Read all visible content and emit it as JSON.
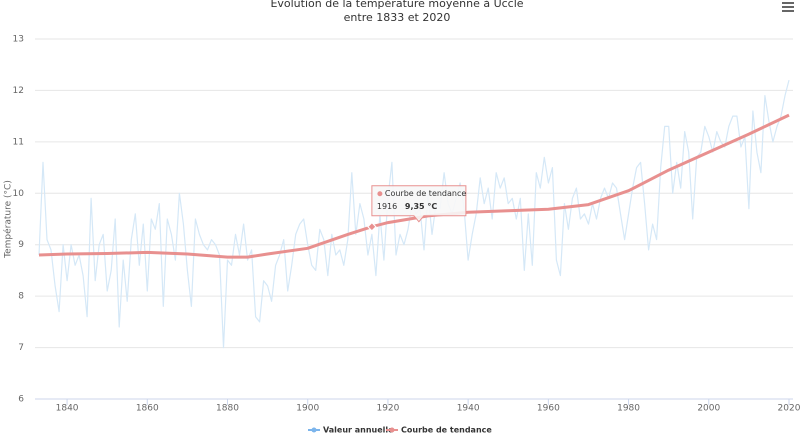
{
  "chart_data": {
    "type": "line",
    "title": "Évolution de la température moyenne à Uccle",
    "subtitle": "entre 1833 et 2020",
    "y_label": "Température (°C)",
    "xlim": [
      1832,
      2021
    ],
    "xticks": [
      1840,
      1860,
      1880,
      1900,
      1920,
      1940,
      1960,
      1980,
      2000,
      2020
    ],
    "ylim": [
      6,
      13
    ],
    "yticks": [
      6,
      7,
      8,
      9,
      10,
      11,
      12,
      13
    ],
    "grid": true,
    "series": [
      {
        "name": "Valeur annuelle",
        "color": "#d5e8f7",
        "marker_color": "#7cb5ec",
        "x_start": 1833,
        "values": [
          8.8,
          10.6,
          9.1,
          8.9,
          8.2,
          7.7,
          9.0,
          8.3,
          9.0,
          8.6,
          8.8,
          8.4,
          7.6,
          9.9,
          8.3,
          9.0,
          9.2,
          8.1,
          8.5,
          9.5,
          7.4,
          8.7,
          7.9,
          9.1,
          9.6,
          8.6,
          9.4,
          8.1,
          9.5,
          9.3,
          9.8,
          7.8,
          9.5,
          9.2,
          8.7,
          10.0,
          9.4,
          8.5,
          7.8,
          9.5,
          9.2,
          9.0,
          8.9,
          9.1,
          9.0,
          8.8,
          7.0,
          8.7,
          8.6,
          9.2,
          8.8,
          9.4,
          8.7,
          8.9,
          7.6,
          7.5,
          8.3,
          8.2,
          7.9,
          8.6,
          8.8,
          9.1,
          8.1,
          8.6,
          9.2,
          9.4,
          9.5,
          9.0,
          8.6,
          8.5,
          9.3,
          9.1,
          8.4,
          9.2,
          8.8,
          8.9,
          8.6,
          9.1,
          10.4,
          9.2,
          9.8,
          9.5,
          8.8,
          9.2,
          8.4,
          9.6,
          8.7,
          9.9,
          10.6,
          8.8,
          9.2,
          9.0,
          9.3,
          9.8,
          9.6,
          9.7,
          8.9,
          10.0,
          9.2,
          9.8,
          9.7,
          10.4,
          9.8,
          9.6,
          9.9,
          10.2,
          9.7,
          8.7,
          9.2,
          9.6,
          10.3,
          9.8,
          10.1,
          9.5,
          10.4,
          10.1,
          10.3,
          9.8,
          9.9,
          9.5,
          9.9,
          8.5,
          9.6,
          8.6,
          10.4,
          10.1,
          10.7,
          10.2,
          10.5,
          8.7,
          8.4,
          9.8,
          9.3,
          9.9,
          10.1,
          9.5,
          9.6,
          9.4,
          9.8,
          9.5,
          9.9,
          10.1,
          9.9,
          10.2,
          10.1,
          9.6,
          9.1,
          9.6,
          10.1,
          10.5,
          10.6,
          9.8,
          8.9,
          9.4,
          9.1,
          10.5,
          11.3,
          11.3,
          10.0,
          10.6,
          10.1,
          11.2,
          10.8,
          9.5,
          10.7,
          10.8,
          11.3,
          11.1,
          10.8,
          11.2,
          11.0,
          10.9,
          11.3,
          11.5,
          11.5,
          10.9,
          11.1,
          9.7,
          11.6,
          10.8,
          10.4,
          11.9,
          11.4,
          11.0,
          11.3,
          11.5,
          11.9,
          12.2
        ]
      },
      {
        "name": "Courbe de tendance",
        "color": "#e8908f",
        "x": [
          1833,
          1840,
          1850,
          1860,
          1870,
          1880,
          1885,
          1890,
          1900,
          1910,
          1916,
          1920,
          1930,
          1940,
          1950,
          1960,
          1970,
          1980,
          1990,
          2000,
          2010,
          2020
        ],
        "values": [
          8.8,
          8.82,
          8.83,
          8.85,
          8.82,
          8.76,
          8.76,
          8.82,
          8.93,
          9.2,
          9.35,
          9.43,
          9.56,
          9.63,
          9.66,
          9.69,
          9.78,
          10.05,
          10.45,
          10.8,
          11.15,
          11.52
        ]
      }
    ],
    "tooltip": {
      "x": 1916,
      "value": 9.35,
      "value_label": "9,35 °C"
    }
  }
}
